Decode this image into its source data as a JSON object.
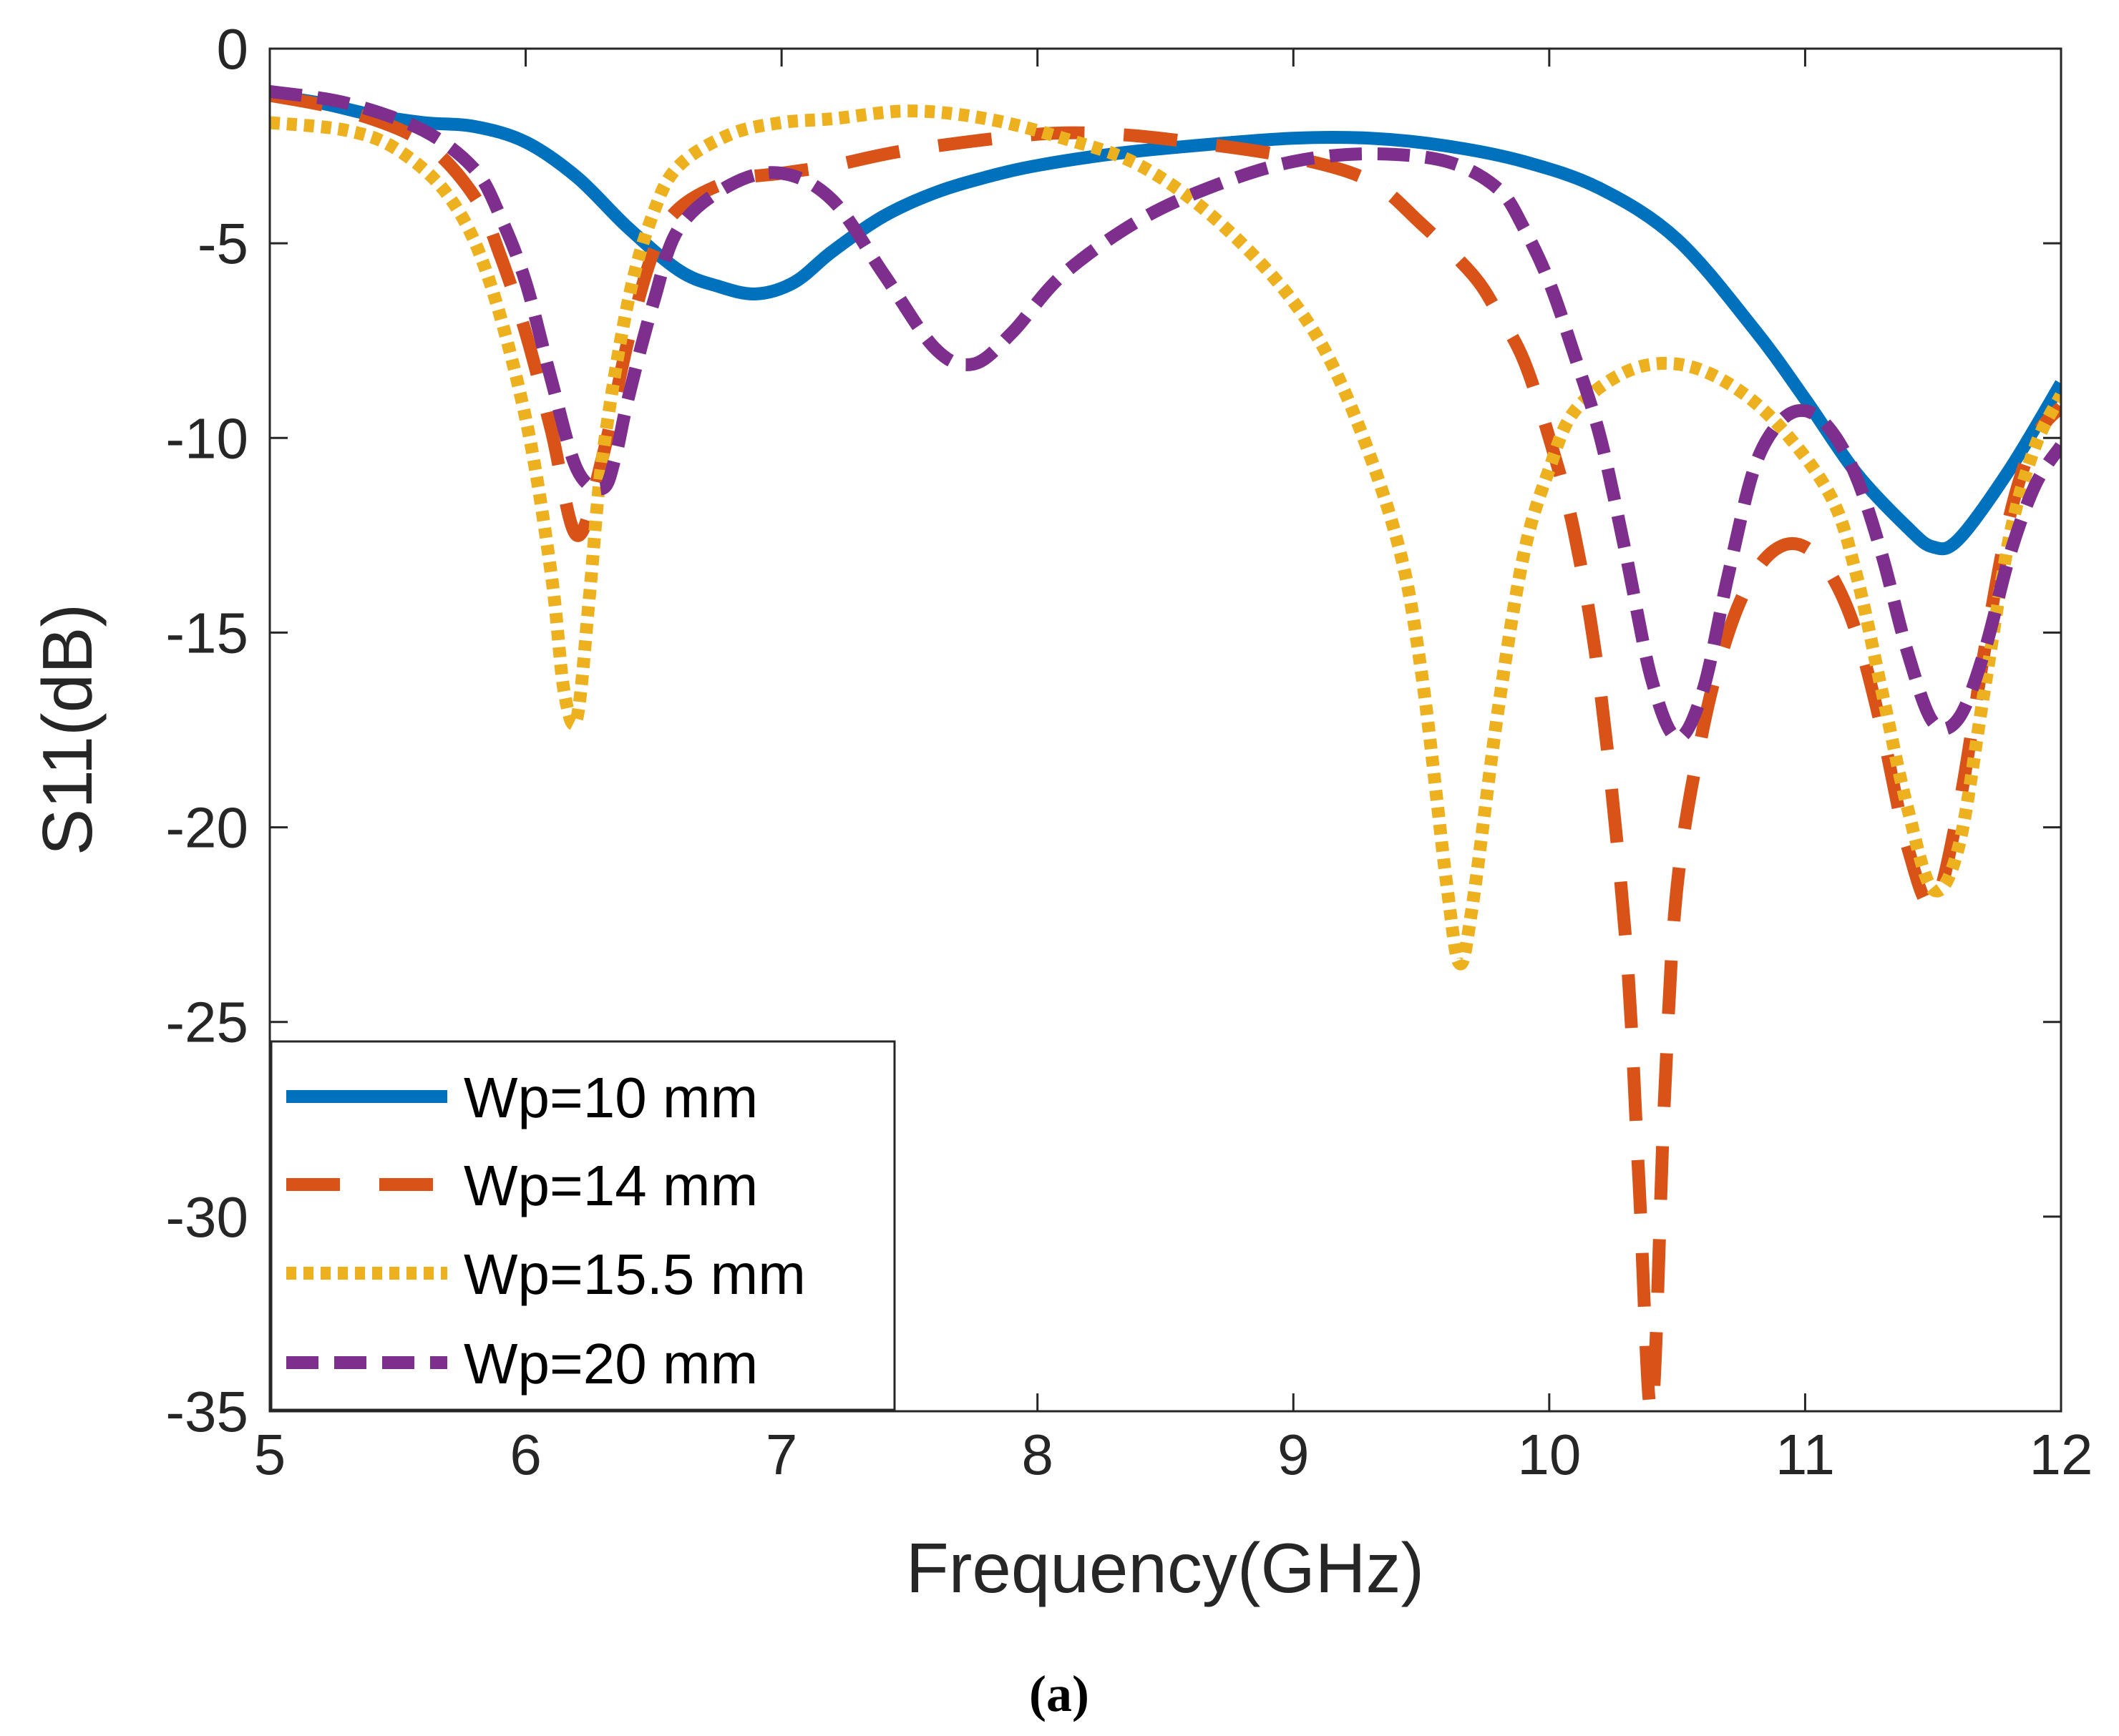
{
  "chart_data": {
    "type": "line",
    "title": "",
    "xlabel": "Frequency(GHz)",
    "ylabel": "S11(dB)",
    "caption": "(a)",
    "xlim": [
      5,
      12
    ],
    "ylim": [
      -35,
      0
    ],
    "xticks": [
      5,
      6,
      7,
      8,
      9,
      10,
      11,
      12
    ],
    "yticks": [
      0,
      -5,
      -10,
      -15,
      -20,
      -25,
      -30,
      -35
    ],
    "xtick_labels": [
      "5",
      "6",
      "7",
      "8",
      "9",
      "10",
      "11",
      "12"
    ],
    "ytick_labels": [
      "0",
      "-5",
      "-10",
      "-15",
      "-20",
      "-25",
      "-30",
      "-35"
    ],
    "grid": false,
    "legend_location": "bottom-left",
    "series": [
      {
        "name": "Wp=10 mm",
        "color": "#0072BD",
        "style": "solid",
        "x": [
          5.0,
          5.2,
          5.4,
          5.6,
          5.8,
          6.0,
          6.2,
          6.4,
          6.6,
          6.75,
          6.9,
          7.05,
          7.2,
          7.4,
          7.6,
          7.8,
          8.0,
          8.3,
          8.6,
          9.0,
          9.3,
          9.6,
          9.9,
          10.2,
          10.5,
          10.8,
          11.0,
          11.2,
          11.4,
          11.5,
          11.6,
          11.8,
          12.0
        ],
        "y": [
          -1.2,
          -1.4,
          -1.7,
          -1.9,
          -2.0,
          -2.4,
          -3.3,
          -4.6,
          -5.7,
          -6.1,
          -6.3,
          -6.0,
          -5.2,
          -4.3,
          -3.7,
          -3.3,
          -3.0,
          -2.7,
          -2.5,
          -2.3,
          -2.3,
          -2.5,
          -2.9,
          -3.6,
          -4.9,
          -7.2,
          -9.0,
          -10.9,
          -12.3,
          -12.8,
          -12.6,
          -10.8,
          -8.6
        ]
      },
      {
        "name": "Wp=14 mm",
        "color": "#D95319",
        "style": "dashed",
        "x": [
          5.0,
          5.3,
          5.6,
          5.8,
          5.9,
          6.0,
          6.1,
          6.2,
          6.3,
          6.4,
          6.5,
          6.6,
          6.8,
          7.0,
          7.2,
          7.5,
          8.0,
          8.3,
          8.6,
          9.0,
          9.3,
          9.5,
          9.7,
          9.8,
          9.9,
          10.0,
          10.1,
          10.2,
          10.3,
          10.35,
          10.4,
          10.45,
          10.5,
          10.6,
          10.7,
          10.8,
          10.9,
          11.0,
          11.1,
          11.2,
          11.3,
          11.4,
          11.5,
          11.6,
          11.7,
          11.8,
          11.9,
          12.0
        ],
        "y": [
          -1.2,
          -1.6,
          -2.4,
          -3.8,
          -5.3,
          -7.3,
          -9.8,
          -12.5,
          -10.5,
          -7.5,
          -5.2,
          -4.1,
          -3.4,
          -3.2,
          -3.0,
          -2.6,
          -2.2,
          -2.2,
          -2.4,
          -2.8,
          -3.4,
          -4.5,
          -5.8,
          -6.8,
          -8.0,
          -10.0,
          -12.5,
          -16.5,
          -23.0,
          -29.0,
          -35.0,
          -27.0,
          -21.5,
          -17.5,
          -15.0,
          -13.5,
          -12.8,
          -12.8,
          -13.5,
          -15.0,
          -17.5,
          -20.5,
          -22.0,
          -19.5,
          -15.5,
          -12.0,
          -10.0,
          -9.2
        ]
      },
      {
        "name": "Wp=15.5 mm",
        "color": "#EDB120",
        "style": "dotted",
        "x": [
          5.0,
          5.3,
          5.5,
          5.7,
          5.85,
          6.0,
          6.1,
          6.15,
          6.2,
          6.25,
          6.3,
          6.4,
          6.5,
          6.6,
          6.8,
          7.0,
          7.2,
          7.5,
          7.8,
          8.1,
          8.4,
          8.7,
          9.0,
          9.2,
          9.4,
          9.5,
          9.6,
          9.65,
          9.7,
          9.8,
          9.9,
          10.0,
          10.1,
          10.3,
          10.5,
          10.7,
          10.9,
          11.1,
          11.2,
          11.3,
          11.4,
          11.5,
          11.6,
          11.7,
          11.8,
          11.9,
          12.0
        ],
        "y": [
          -1.9,
          -2.1,
          -2.6,
          -3.8,
          -5.8,
          -9.5,
          -13.5,
          -16.5,
          -17.2,
          -14.0,
          -10.5,
          -6.5,
          -4.2,
          -3.0,
          -2.2,
          -1.9,
          -1.8,
          -1.6,
          -1.8,
          -2.3,
          -3.0,
          -4.4,
          -6.5,
          -8.8,
          -12.5,
          -16.0,
          -21.5,
          -23.5,
          -22.0,
          -17.0,
          -13.0,
          -10.8,
          -9.3,
          -8.3,
          -8.1,
          -8.6,
          -9.7,
          -11.5,
          -13.5,
          -16.5,
          -19.5,
          -21.6,
          -20.5,
          -16.5,
          -12.5,
          -10.2,
          -8.9
        ]
      },
      {
        "name": "Wp=20 mm",
        "color": "#7E2F8E",
        "style": "dash-dot",
        "x": [
          5.0,
          5.3,
          5.6,
          5.8,
          5.9,
          6.0,
          6.1,
          6.2,
          6.3,
          6.35,
          6.4,
          6.5,
          6.6,
          6.8,
          7.0,
          7.2,
          7.4,
          7.6,
          7.75,
          7.9,
          8.1,
          8.4,
          8.7,
          9.0,
          9.3,
          9.6,
          9.8,
          9.9,
          10.0,
          10.1,
          10.2,
          10.3,
          10.4,
          10.5,
          10.6,
          10.7,
          10.8,
          10.9,
          11.0,
          11.1,
          11.2,
          11.3,
          11.4,
          11.5,
          11.6,
          11.7,
          11.8,
          11.9,
          12.0
        ],
        "y": [
          -1.1,
          -1.4,
          -2.1,
          -3.1,
          -4.3,
          -6.0,
          -8.5,
          -10.8,
          -11.3,
          -10.5,
          -9.0,
          -6.5,
          -4.6,
          -3.5,
          -3.2,
          -3.9,
          -5.8,
          -7.7,
          -8.1,
          -7.3,
          -5.8,
          -4.4,
          -3.5,
          -2.9,
          -2.7,
          -2.9,
          -3.6,
          -4.6,
          -6.0,
          -7.9,
          -10.0,
          -13.0,
          -16.2,
          -17.7,
          -16.5,
          -13.5,
          -10.8,
          -9.6,
          -9.3,
          -9.8,
          -11.0,
          -13.0,
          -15.5,
          -17.3,
          -17.2,
          -15.5,
          -13.0,
          -11.2,
          -10.2
        ]
      }
    ]
  }
}
